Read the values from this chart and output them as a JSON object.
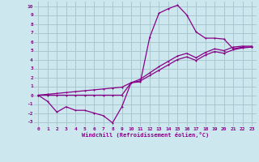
{
  "xlabel": "Windchill (Refroidissement éolien,°C)",
  "bg_color": "#cce8ee",
  "grid_color": "#aac8d0",
  "line_color": "#880088",
  "xlim": [
    -0.5,
    23.5
  ],
  "ylim": [
    -3.5,
    10.5
  ],
  "xticks": [
    0,
    1,
    2,
    3,
    4,
    5,
    6,
    7,
    8,
    9,
    10,
    11,
    12,
    13,
    14,
    15,
    16,
    17,
    18,
    19,
    20,
    21,
    22,
    23
  ],
  "yticks": [
    -3,
    -2,
    -1,
    0,
    1,
    2,
    3,
    4,
    5,
    6,
    7,
    8,
    9,
    10
  ],
  "series1_x": [
    0,
    1,
    2,
    3,
    4,
    5,
    6,
    7,
    8,
    9,
    10,
    11,
    12,
    13,
    14,
    15,
    16,
    17,
    18,
    19,
    20,
    21,
    22,
    23
  ],
  "series1_y": [
    0,
    -0.7,
    -1.9,
    -1.3,
    -1.7,
    -1.7,
    -2.0,
    -2.3,
    -3.1,
    -1.3,
    1.4,
    1.5,
    6.5,
    9.2,
    9.7,
    10.1,
    9.0,
    7.1,
    6.4,
    6.4,
    6.3,
    5.2,
    5.4,
    5.4
  ],
  "series2_x": [
    0,
    1,
    2,
    3,
    4,
    5,
    6,
    7,
    8,
    9,
    10,
    11,
    12,
    13,
    14,
    15,
    16,
    17,
    18,
    19,
    20,
    21,
    22,
    23
  ],
  "series2_y": [
    0,
    0.0,
    0.0,
    0.0,
    0.0,
    0.0,
    0.0,
    0.0,
    0.0,
    0.0,
    1.4,
    1.8,
    2.5,
    3.2,
    3.8,
    4.4,
    4.7,
    4.2,
    4.8,
    5.2,
    5.0,
    5.4,
    5.5,
    5.5
  ],
  "series3_x": [
    0,
    1,
    2,
    3,
    4,
    5,
    6,
    7,
    8,
    9,
    10,
    11,
    12,
    13,
    14,
    15,
    16,
    17,
    18,
    19,
    20,
    21,
    22,
    23
  ],
  "series3_y": [
    0,
    0.1,
    0.2,
    0.3,
    0.4,
    0.5,
    0.6,
    0.7,
    0.8,
    0.9,
    1.4,
    1.6,
    2.2,
    2.8,
    3.4,
    4.0,
    4.3,
    3.9,
    4.5,
    4.9,
    4.7,
    5.1,
    5.3,
    5.4
  ]
}
